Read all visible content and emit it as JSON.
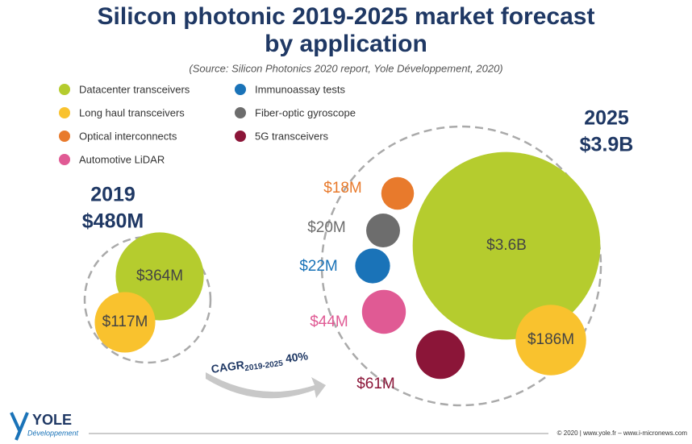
{
  "title": [
    "Silicon photonic 2019-2025 market forecast",
    "by application"
  ],
  "subtitle": "(Source: Silicon Photonics 2020 report, Yole Développement, 2020)",
  "cagr": {
    "label": "CAGR",
    "period": "2019-2025",
    "value": "40%"
  },
  "footer": "© 2020 | www.yole.fr – www.i-micronews.com",
  "logo": {
    "name": "YOLE",
    "tagline": "Développement"
  },
  "chart_data": [
    {
      "type": "bubble",
      "title": "2019",
      "total": {
        "value": 480,
        "label": "$480M"
      },
      "categories": [
        "Datacenter transceivers",
        "Long haul transceivers"
      ],
      "values": [
        364,
        117
      ],
      "value_labels": [
        "$364M",
        "$117M"
      ],
      "colors": [
        "#b5cc2e",
        "#f9c22e"
      ]
    },
    {
      "type": "bubble",
      "title": "2025",
      "total": {
        "value": 3900,
        "label": "$3.9B"
      },
      "categories": [
        "Datacenter transceivers",
        "Long haul transceivers",
        "Optical interconnects",
        "Automotive LiDAR",
        "Immunoassay tests",
        "Fiber-optic gyroscope",
        "5G transceivers"
      ],
      "values": [
        3600,
        186,
        18,
        44,
        22,
        20,
        61
      ],
      "value_labels": [
        "$3.6B",
        "$186M",
        "$18M",
        "$44M",
        "$22M",
        "$20M",
        "$61M"
      ],
      "colors": [
        "#b5cc2e",
        "#f9c22e",
        "#e87a2c",
        "#e05a94",
        "#1a73b8",
        "#6d6d6d",
        "#8b1538"
      ]
    }
  ]
}
